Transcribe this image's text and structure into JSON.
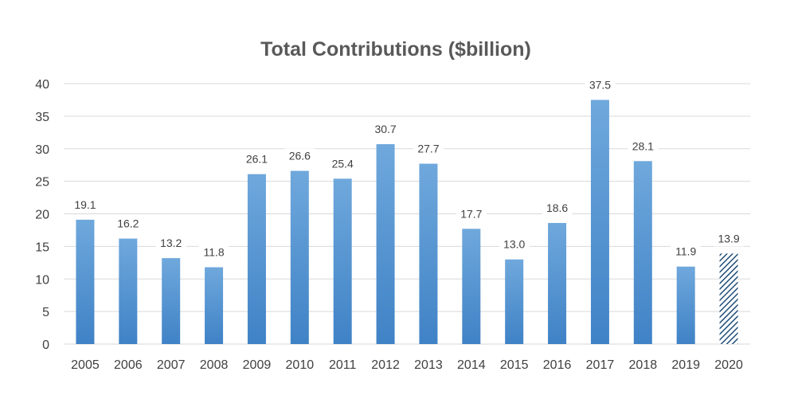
{
  "chart_data": {
    "type": "bar",
    "title": "Total Contributions ($billion)",
    "xlabel": "",
    "ylabel": "",
    "ylim": [
      0,
      40
    ],
    "yticks": [
      0,
      5,
      10,
      15,
      20,
      25,
      30,
      35,
      40
    ],
    "grid": true,
    "categories": [
      "2005",
      "2006",
      "2007",
      "2008",
      "2009",
      "2010",
      "2011",
      "2012",
      "2013",
      "2014",
      "2015",
      "2016",
      "2017",
      "2018",
      "2019",
      "2020"
    ],
    "values": [
      19.1,
      16.2,
      13.2,
      11.8,
      26.1,
      26.6,
      25.4,
      30.7,
      27.7,
      17.7,
      13.0,
      18.6,
      37.5,
      28.1,
      11.9,
      13.9
    ],
    "data_labels": [
      "19.1",
      "16.2",
      "13.2",
      "11.8",
      "26.1",
      "26.6",
      "25.4",
      "30.7",
      "27.7",
      "17.7",
      "13.0",
      "18.6",
      "37.5",
      "28.1",
      "11.9",
      "13.9"
    ],
    "hatched_categories": [
      "2020"
    ],
    "colors": {
      "bar_top": "#6fa8dc",
      "bar_bottom": "#3f82c6",
      "hatch": "#1f4e79",
      "grid": "#d9d9d9"
    }
  }
}
